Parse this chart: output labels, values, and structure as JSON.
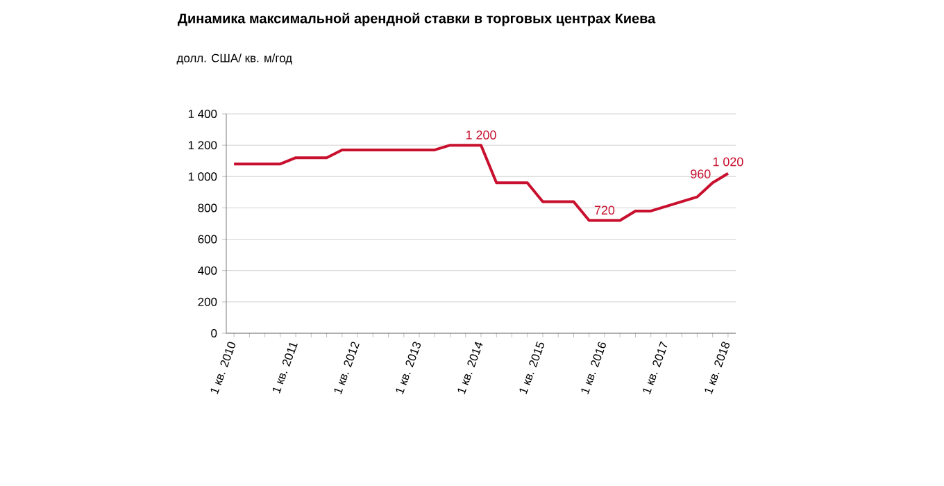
{
  "chart_data": {
    "type": "line",
    "title": "Динамика максимальной арендной ставки в торговых центрах Киева",
    "ylabel": "долл. США/ кв. м/год",
    "categories": [
      "1 кв. 2010",
      null,
      null,
      null,
      "1 кв. 2011",
      null,
      null,
      null,
      "1 кв. 2012",
      null,
      null,
      null,
      "1 кв. 2013",
      null,
      null,
      null,
      "1 кв. 2014",
      null,
      null,
      null,
      "1 кв. 2015",
      null,
      null,
      null,
      "1 кв. 2016",
      null,
      null,
      null,
      "1 кв. 2017",
      null,
      null,
      null,
      "1 кв. 2018"
    ],
    "series": [
      {
        "color": "#c8102e",
        "values": [
          1080,
          1080,
          1080,
          1080,
          1120,
          1120,
          1120,
          1170,
          1170,
          1170,
          1170,
          1170,
          1170,
          1170,
          1200,
          1200,
          1200,
          960,
          960,
          960,
          840,
          840,
          840,
          720,
          720,
          720,
          780,
          780,
          810,
          840,
          870,
          960,
          1020
        ],
        "value_labels": [
          null,
          null,
          null,
          null,
          null,
          null,
          null,
          null,
          null,
          null,
          null,
          null,
          null,
          null,
          null,
          null,
          "1 200",
          null,
          null,
          null,
          null,
          null,
          null,
          null,
          "720",
          null,
          null,
          null,
          null,
          null,
          null,
          "960",
          "1 020"
        ]
      }
    ],
    "ylim": [
      0,
      1400
    ],
    "yticks": [
      0,
      200,
      400,
      600,
      800,
      {
        "value": 1000,
        "label": "1 000"
      },
      {
        "value": 1200,
        "label": "1 200"
      },
      {
        "value": 1400,
        "label": "1 400"
      }
    ],
    "grid": "y",
    "marker": "none",
    "line_style": "solid"
  }
}
